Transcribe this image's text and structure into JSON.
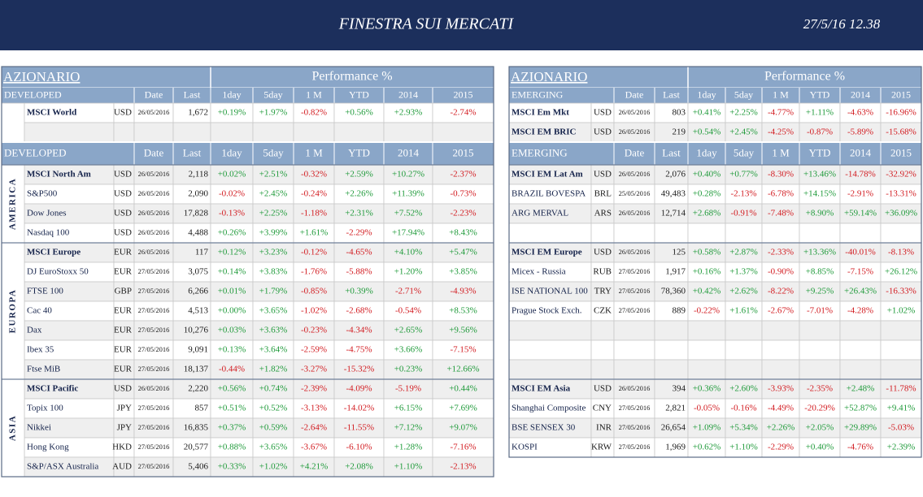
{
  "header": {
    "title": "FINESTRA SUI MERCATI",
    "timestamp": "27/5/16 12.38"
  },
  "panels": [
    {
      "title": "AZIONARIO",
      "performance": "Performance %",
      "group": "DEVELOPED",
      "columns": [
        "Date",
        "Last",
        "1day",
        "5day",
        "1 M",
        "YTD",
        "2014",
        "2015"
      ],
      "top_rows": [
        [
          "MSCI World",
          "USD",
          "26/05/2016",
          "1,672",
          "+0.19%",
          "+1.97%",
          "-0.82%",
          "+0.56%",
          "+2.93%",
          "-2.74%"
        ],
        null
      ],
      "sections": [
        {
          "region": "AMERICA",
          "rows": [
            [
              "MSCI North Am",
              "USD",
              "26/05/2016",
              "2,118",
              "+0.02%",
              "+2.51%",
              "-0.32%",
              "+2.59%",
              "+10.27%",
              "-2.37%"
            ],
            [
              "S&P500",
              "USD",
              "26/05/2016",
              "2,090",
              "-0.02%",
              "+2.45%",
              "-0.24%",
              "+2.26%",
              "+11.39%",
              "-0.73%"
            ],
            [
              "Dow Jones",
              "USD",
              "26/05/2016",
              "17,828",
              "-0.13%",
              "+2.25%",
              "-1.18%",
              "+2.31%",
              "+7.52%",
              "-2.23%"
            ],
            [
              "Nasdaq 100",
              "USD",
              "26/05/2016",
              "4,488",
              "+0.26%",
              "+3.99%",
              "+1.61%",
              "-2.29%",
              "+17.94%",
              "+8.43%"
            ]
          ]
        },
        {
          "region": "EUROPA",
          "rows": [
            [
              "MSCI Europe",
              "EUR",
              "26/05/2016",
              "117",
              "+0.12%",
              "+3.23%",
              "-0.12%",
              "-4.65%",
              "+4.10%",
              "+5.47%"
            ],
            [
              "DJ EuroStoxx 50",
              "EUR",
              "27/05/2016",
              "3,075",
              "+0.14%",
              "+3.83%",
              "-1.76%",
              "-5.88%",
              "+1.20%",
              "+3.85%"
            ],
            [
              "FTSE 100",
              "GBP",
              "27/05/2016",
              "6,266",
              "+0.01%",
              "+1.79%",
              "-0.85%",
              "+0.39%",
              "-2.71%",
              "-4.93%"
            ],
            [
              "Cac 40",
              "EUR",
              "27/05/2016",
              "4,513",
              "+0.00%",
              "+3.65%",
              "-1.02%",
              "-2.68%",
              "-0.54%",
              "+8.53%"
            ],
            [
              "Dax",
              "EUR",
              "27/05/2016",
              "10,276",
              "+0.03%",
              "+3.63%",
              "-0.23%",
              "-4.34%",
              "+2.65%",
              "+9.56%"
            ],
            [
              "Ibex 35",
              "EUR",
              "27/05/2016",
              "9,091",
              "+0.13%",
              "+3.64%",
              "-2.59%",
              "-4.75%",
              "+3.66%",
              "-7.15%"
            ],
            [
              "Ftse MiB",
              "EUR",
              "27/05/2016",
              "18,137",
              "-0.44%",
              "+1.82%",
              "-3.27%",
              "-15.32%",
              "+0.23%",
              "+12.66%"
            ]
          ]
        },
        {
          "region": "ASIA",
          "rows": [
            [
              "MSCI Pacific",
              "USD",
              "26/05/2016",
              "2,220",
              "+0.56%",
              "+0.74%",
              "-2.39%",
              "-4.09%",
              "-5.19%",
              "+0.44%"
            ],
            [
              "Topix 100",
              "JPY",
              "27/05/2016",
              "857",
              "+0.51%",
              "+0.52%",
              "-3.13%",
              "-14.02%",
              "+6.15%",
              "+7.69%"
            ],
            [
              "Nikkei",
              "JPY",
              "27/05/2016",
              "16,835",
              "+0.37%",
              "+0.59%",
              "-2.64%",
              "-11.55%",
              "+7.12%",
              "+9.07%"
            ],
            [
              "Hong Kong",
              "HKD",
              "27/05/2016",
              "20,577",
              "+0.88%",
              "+3.65%",
              "-3.67%",
              "-6.10%",
              "+1.28%",
              "-7.16%"
            ],
            [
              "S&P/ASX Australia",
              "AUD",
              "27/05/2016",
              "5,406",
              "+0.33%",
              "+1.02%",
              "+4.21%",
              "+2.08%",
              "+1.10%",
              "-2.13%"
            ]
          ]
        }
      ]
    },
    {
      "title": "AZIONARIO",
      "performance": "Performance %",
      "group": "EMERGING",
      "columns": [
        "Date",
        "Last",
        "1day",
        "5day",
        "1 M",
        "YTD",
        "2014",
        "2015"
      ],
      "top_rows": [
        [
          "MSCI Em Mkt",
          "USD",
          "26/05/2016",
          "803",
          "+0.41%",
          "+2.25%",
          "-4.77%",
          "+1.11%",
          "-4.63%",
          "-16.96%"
        ],
        [
          "MSCI EM BRIC",
          "USD",
          "26/05/2016",
          "219",
          "+0.54%",
          "+2.45%",
          "-4.25%",
          "-0.87%",
          "-5.89%",
          "-15.68%"
        ]
      ],
      "sections": [
        {
          "rows": [
            [
              "MSCI EM Lat Am",
              "USD",
              "26/05/2016",
              "2,076",
              "+0.40%",
              "+0.77%",
              "-8.30%",
              "+13.46%",
              "-14.78%",
              "-32.92%"
            ],
            [
              "BRAZIL BOVESPA",
              "BRL",
              "25/05/2016",
              "49,483",
              "+0.28%",
              "-2.13%",
              "-6.78%",
              "+14.15%",
              "-2.91%",
              "-13.31%"
            ],
            [
              "ARG MERVAL",
              "ARS",
              "26/05/2016",
              "12,714",
              "+2.68%",
              "-0.91%",
              "-7.48%",
              "+8.90%",
              "+59.14%",
              "+36.09%"
            ],
            null
          ]
        },
        {
          "rows": [
            [
              "MSCI EM Europe",
              "USD",
              "26/05/2016",
              "125",
              "+0.58%",
              "+2.87%",
              "-2.33%",
              "+13.36%",
              "-40.01%",
              "-8.13%"
            ],
            [
              "Micex - Russia",
              "RUB",
              "27/05/2016",
              "1,917",
              "+0.16%",
              "+1.37%",
              "-0.90%",
              "+8.85%",
              "-7.15%",
              "+26.12%"
            ],
            [
              "ISE NATIONAL 100",
              "TRY",
              "27/05/2016",
              "78,360",
              "+0.42%",
              "+2.62%",
              "-8.22%",
              "+9.25%",
              "+26.43%",
              "-16.33%"
            ],
            [
              "Prague Stock Exch.",
              "CZK",
              "27/05/2016",
              "889",
              "-0.22%",
              "+1.61%",
              "-2.67%",
              "-7.01%",
              "-4.28%",
              "+1.02%"
            ],
            null,
            null,
            null
          ]
        },
        {
          "rows": [
            [
              "MSCI EM Asia",
              "USD",
              "26/05/2016",
              "394",
              "+0.36%",
              "+2.60%",
              "-3.93%",
              "-2.35%",
              "+2.48%",
              "-11.78%"
            ],
            [
              "Shanghai Composite",
              "CNY",
              "27/05/2016",
              "2,821",
              "-0.05%",
              "-0.16%",
              "-4.49%",
              "-20.29%",
              "+52.87%",
              "+9.41%"
            ],
            [
              "BSE SENSEX 30",
              "INR",
              "27/05/2016",
              "26,654",
              "+1.09%",
              "+5.34%",
              "+2.26%",
              "+2.05%",
              "+29.89%",
              "-5.03%"
            ],
            [
              "KOSPI",
              "KRW",
              "27/05/2016",
              "1,969",
              "+0.62%",
              "+1.10%",
              "-2.29%",
              "+0.40%",
              "-4.76%",
              "+2.39%"
            ]
          ]
        }
      ]
    }
  ]
}
